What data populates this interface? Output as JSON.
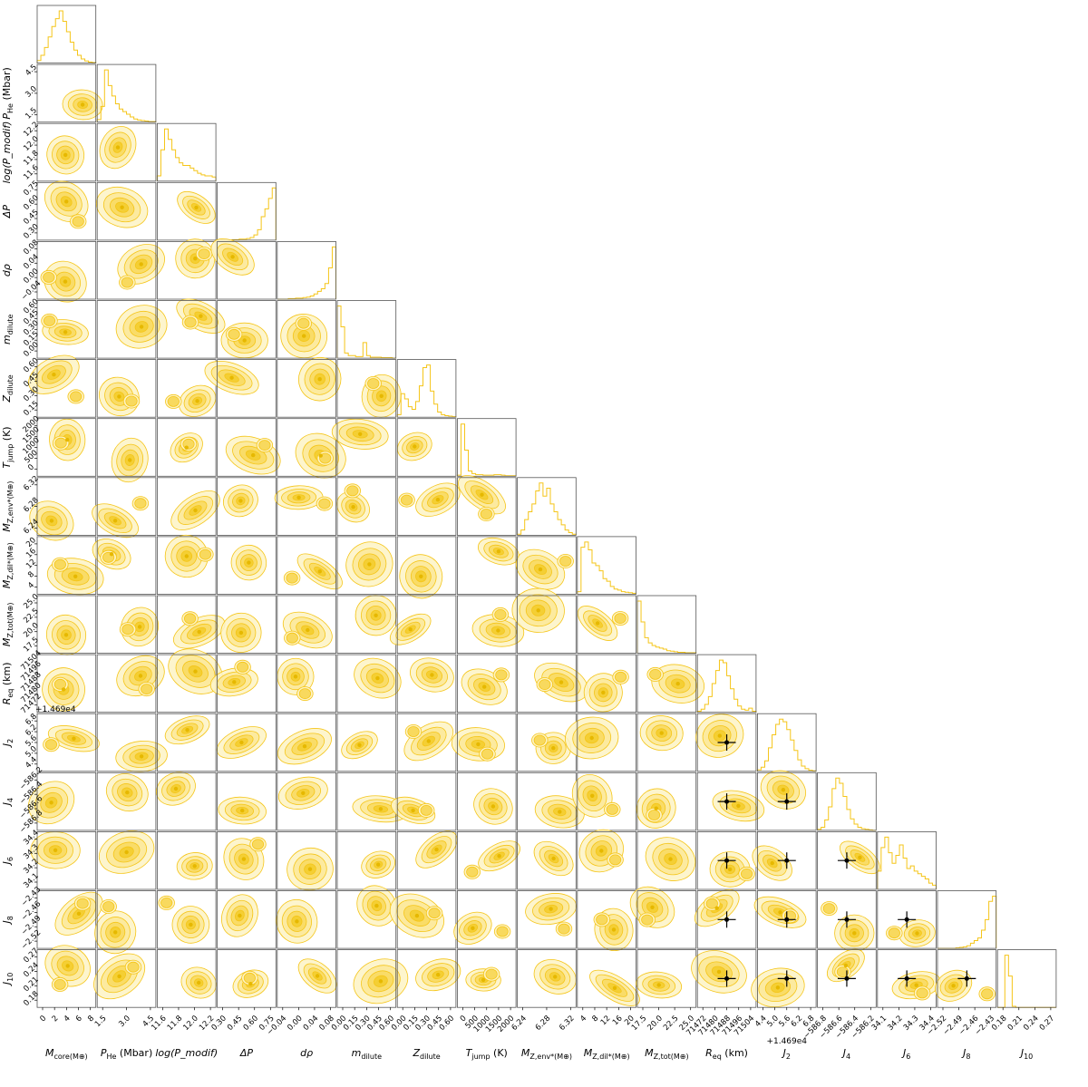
{
  "chart_data": {
    "type": "scatter",
    "variables": [
      {
        "label": "M_core(M⊕)",
        "xtick_labels": [
          "0",
          "2",
          "4",
          "6",
          "8"
        ],
        "ytick_labels": []
      },
      {
        "label": "P_He (Mbar)",
        "xtick_labels": [
          "1.5",
          "3.0",
          "4.5"
        ],
        "ytick_labels": [
          "1.5",
          "3.0",
          "4.5"
        ]
      },
      {
        "label": "log(P_modif)",
        "xtick_labels": [
          "11.6",
          "11.8",
          "12.0",
          "12.2"
        ],
        "ytick_labels": [
          "11.6",
          "11.8",
          "12.0",
          "12.2"
        ]
      },
      {
        "label": "ΔP",
        "xtick_labels": [
          "0.30",
          "0.45",
          "0.60",
          "0.75"
        ],
        "ytick_labels": [
          "0.30",
          "0.45",
          "0.60",
          "0.75"
        ]
      },
      {
        "label": "dρ",
        "xtick_labels": [
          "−0.04",
          "0.00",
          "0.04",
          "0.08"
        ],
        "ytick_labels": [
          "−0.04",
          "0.00",
          "0.04",
          "0.08"
        ]
      },
      {
        "label": "m_dilute",
        "xtick_labels": [
          "0.00",
          "0.15",
          "0.30",
          "0.45",
          "0.60"
        ],
        "ytick_labels": [
          "0.00",
          "0.15",
          "0.30",
          "0.45",
          "0.60"
        ]
      },
      {
        "label": "Z_dilute",
        "xtick_labels": [
          "0.00",
          "0.15",
          "0.30",
          "0.45",
          "0.60"
        ],
        "ytick_labels": [
          "0.15",
          "0.30",
          "0.45",
          "0.60"
        ]
      },
      {
        "label": "T_jump (K)",
        "xtick_labels": [
          "0",
          "500",
          "1000",
          "1500",
          "2000"
        ],
        "ytick_labels": [
          "0",
          "500",
          "1000",
          "1500",
          "2000"
        ]
      },
      {
        "label": "M_Z,env*(M⊕)",
        "xtick_labels": [
          "6.24",
          "6.28",
          "6.32"
        ],
        "ytick_labels": [
          "6.24",
          "6.28",
          "6.32"
        ]
      },
      {
        "label": "M_Z,dil*(M⊕)",
        "xtick_labels": [
          "4",
          "8",
          "12",
          "16",
          "20"
        ],
        "ytick_labels": [
          "4",
          "8",
          "12",
          "16",
          "20"
        ]
      },
      {
        "label": "M_Z,tot(M⊕)",
        "xtick_labels": [
          "17.5",
          "20.0",
          "22.5",
          "25.0"
        ],
        "ytick_labels": [
          "17.5",
          "20.0",
          "22.5",
          "25.0"
        ]
      },
      {
        "label": "R_eq (km)",
        "xtick_labels": [
          "71472",
          "71480",
          "71488",
          "71496",
          "71504"
        ],
        "ytick_labels": [
          "71472",
          "71480",
          "71488",
          "71496",
          "71504"
        ]
      },
      {
        "label": "J_2",
        "offset": "+1.469e4",
        "xtick_labels": [
          "4.4",
          "5.0",
          "5.6",
          "6.2",
          "6.8"
        ],
        "ytick_labels": [
          "4.4",
          "5.0",
          "5.6",
          "6.2",
          "6.8"
        ]
      },
      {
        "label": "J_4",
        "xtick_labels": [
          "−586.8",
          "−586.6",
          "−586.4",
          "−586.2"
        ],
        "ytick_labels": [
          "−586.8",
          "−586.6",
          "−586.4",
          "−586.2"
        ]
      },
      {
        "label": "J_6",
        "xtick_labels": [
          "34.1",
          "34.2",
          "34.3",
          "34.4"
        ],
        "ytick_labels": [
          "34.1",
          "34.2",
          "34.3",
          "34.4"
        ]
      },
      {
        "label": "J_8",
        "xtick_labels": [
          "−2.52",
          "−2.49",
          "−2.46",
          "−2.43"
        ],
        "ytick_labels": [
          "−2.52",
          "−2.49",
          "−2.46",
          "−2.43"
        ]
      },
      {
        "label": "J_10",
        "xtick_labels": [
          "0.18",
          "0.21",
          "0.24",
          "0.27"
        ],
        "ytick_labels": [
          "0.18",
          "0.21",
          "0.24",
          "0.27"
        ]
      }
    ],
    "histograms": [
      [
        0.05,
        0.15,
        0.3,
        0.5,
        0.7,
        0.85,
        1.0,
        0.8,
        0.6,
        0.4,
        0.25,
        0.15,
        0.08,
        0.04,
        0.02,
        0.01
      ],
      [
        0.05,
        0.3,
        1.0,
        0.7,
        0.5,
        0.35,
        0.25,
        0.2,
        0.15,
        0.1,
        0.06,
        0.04,
        0.03,
        0.02,
        0.01,
        0.01
      ],
      [
        0.1,
        0.6,
        1.0,
        0.8,
        0.6,
        0.45,
        0.35,
        0.3,
        0.3,
        0.25,
        0.2,
        0.15,
        0.12,
        0.1,
        0.1,
        0.08
      ],
      [
        0.0,
        0.0,
        0.0,
        0.0,
        0.01,
        0.01,
        0.02,
        0.02,
        0.03,
        0.05,
        0.1,
        0.2,
        0.45,
        0.6,
        0.8,
        1.0
      ],
      [
        0.0,
        0.0,
        0.0,
        0.01,
        0.01,
        0.02,
        0.02,
        0.03,
        0.04,
        0.06,
        0.1,
        0.15,
        0.2,
        0.3,
        0.6,
        1.0
      ],
      [
        1.0,
        0.6,
        0.1,
        0.05,
        0.05,
        0.03,
        0.03,
        0.3,
        0.05,
        0.02,
        0.02,
        0.02,
        0.01,
        0.01,
        0.01,
        0.0
      ],
      [
        0.05,
        0.45,
        0.35,
        0.2,
        0.15,
        0.3,
        0.6,
        0.95,
        1.0,
        0.5,
        0.25,
        0.1,
        0.05,
        0.03,
        0.02,
        0.01
      ],
      [
        0.02,
        1.0,
        0.5,
        0.1,
        0.05,
        0.03,
        0.03,
        0.02,
        0.02,
        0.02,
        0.03,
        0.03,
        0.02,
        0.01,
        0.01,
        0.01
      ],
      [
        0.02,
        0.1,
        0.3,
        0.45,
        0.6,
        0.85,
        1.0,
        0.75,
        0.9,
        0.6,
        0.45,
        0.3,
        0.2,
        0.1,
        0.05,
        0.02
      ],
      [
        0.05,
        0.9,
        1.0,
        0.85,
        0.6,
        0.55,
        0.45,
        0.3,
        0.25,
        0.15,
        0.1,
        0.08,
        0.05,
        0.04,
        0.03,
        0.02
      ],
      [
        1.0,
        0.6,
        0.3,
        0.2,
        0.15,
        0.12,
        0.1,
        0.08,
        0.05,
        0.04,
        0.03,
        0.02,
        0.02,
        0.01,
        0.01,
        0.01
      ],
      [
        0.02,
        0.06,
        0.15,
        0.3,
        0.55,
        0.8,
        1.0,
        0.95,
        0.7,
        0.45,
        0.25,
        0.12,
        0.06,
        0.04,
        0.08,
        0.02
      ],
      [
        0.03,
        0.08,
        0.2,
        0.45,
        0.7,
        0.9,
        1.0,
        0.95,
        0.8,
        0.6,
        0.4,
        0.22,
        0.1,
        0.05,
        0.02,
        0.01
      ],
      [
        0.02,
        0.06,
        0.2,
        0.45,
        0.8,
        1.0,
        0.9,
        0.65,
        0.4,
        0.22,
        0.12,
        0.06,
        0.03,
        0.02,
        0.01,
        0.0
      ],
      [
        0.35,
        0.8,
        1.0,
        0.7,
        0.5,
        0.65,
        0.85,
        0.6,
        0.4,
        0.45,
        0.35,
        0.3,
        0.25,
        0.2,
        0.12,
        0.08
      ],
      [
        0.0,
        0.0,
        0.0,
        0.0,
        0.0,
        0.01,
        0.02,
        0.03,
        0.05,
        0.1,
        0.15,
        0.2,
        0.35,
        0.55,
        0.9,
        1.0
      ],
      [
        0.0,
        0.0,
        1.0,
        0.6,
        0.02,
        0.0,
        0.0,
        0.0,
        0.0,
        0.0,
        0.0,
        0.0,
        0.0,
        0.0,
        0.0,
        0.0
      ]
    ],
    "contour_color": "#f5c518",
    "contour_fill_light": "#fdf3c4",
    "contour_fill_dark": "#f3cc2b",
    "observations": [
      {
        "x_var": "R_eq (km)",
        "y_var": "J_2"
      },
      {
        "x_var": "R_eq (km)",
        "y_var": "J_4"
      },
      {
        "x_var": "R_eq (km)",
        "y_var": "J_6"
      },
      {
        "x_var": "R_eq (km)",
        "y_var": "J_8"
      },
      {
        "x_var": "R_eq (km)",
        "y_var": "J_10"
      },
      {
        "x_var": "J_2",
        "y_var": "J_4"
      },
      {
        "x_var": "J_2",
        "y_var": "J_6"
      },
      {
        "x_var": "J_2",
        "y_var": "J_8"
      },
      {
        "x_var": "J_2",
        "y_var": "J_10"
      },
      {
        "x_var": "J_4",
        "y_var": "J_6"
      },
      {
        "x_var": "J_4",
        "y_var": "J_8"
      },
      {
        "x_var": "J_4",
        "y_var": "J_10"
      },
      {
        "x_var": "J_6",
        "y_var": "J_8"
      },
      {
        "x_var": "J_6",
        "y_var": "J_10"
      },
      {
        "x_var": "J_8",
        "y_var": "J_10"
      }
    ],
    "grid": false,
    "legend": "none"
  }
}
